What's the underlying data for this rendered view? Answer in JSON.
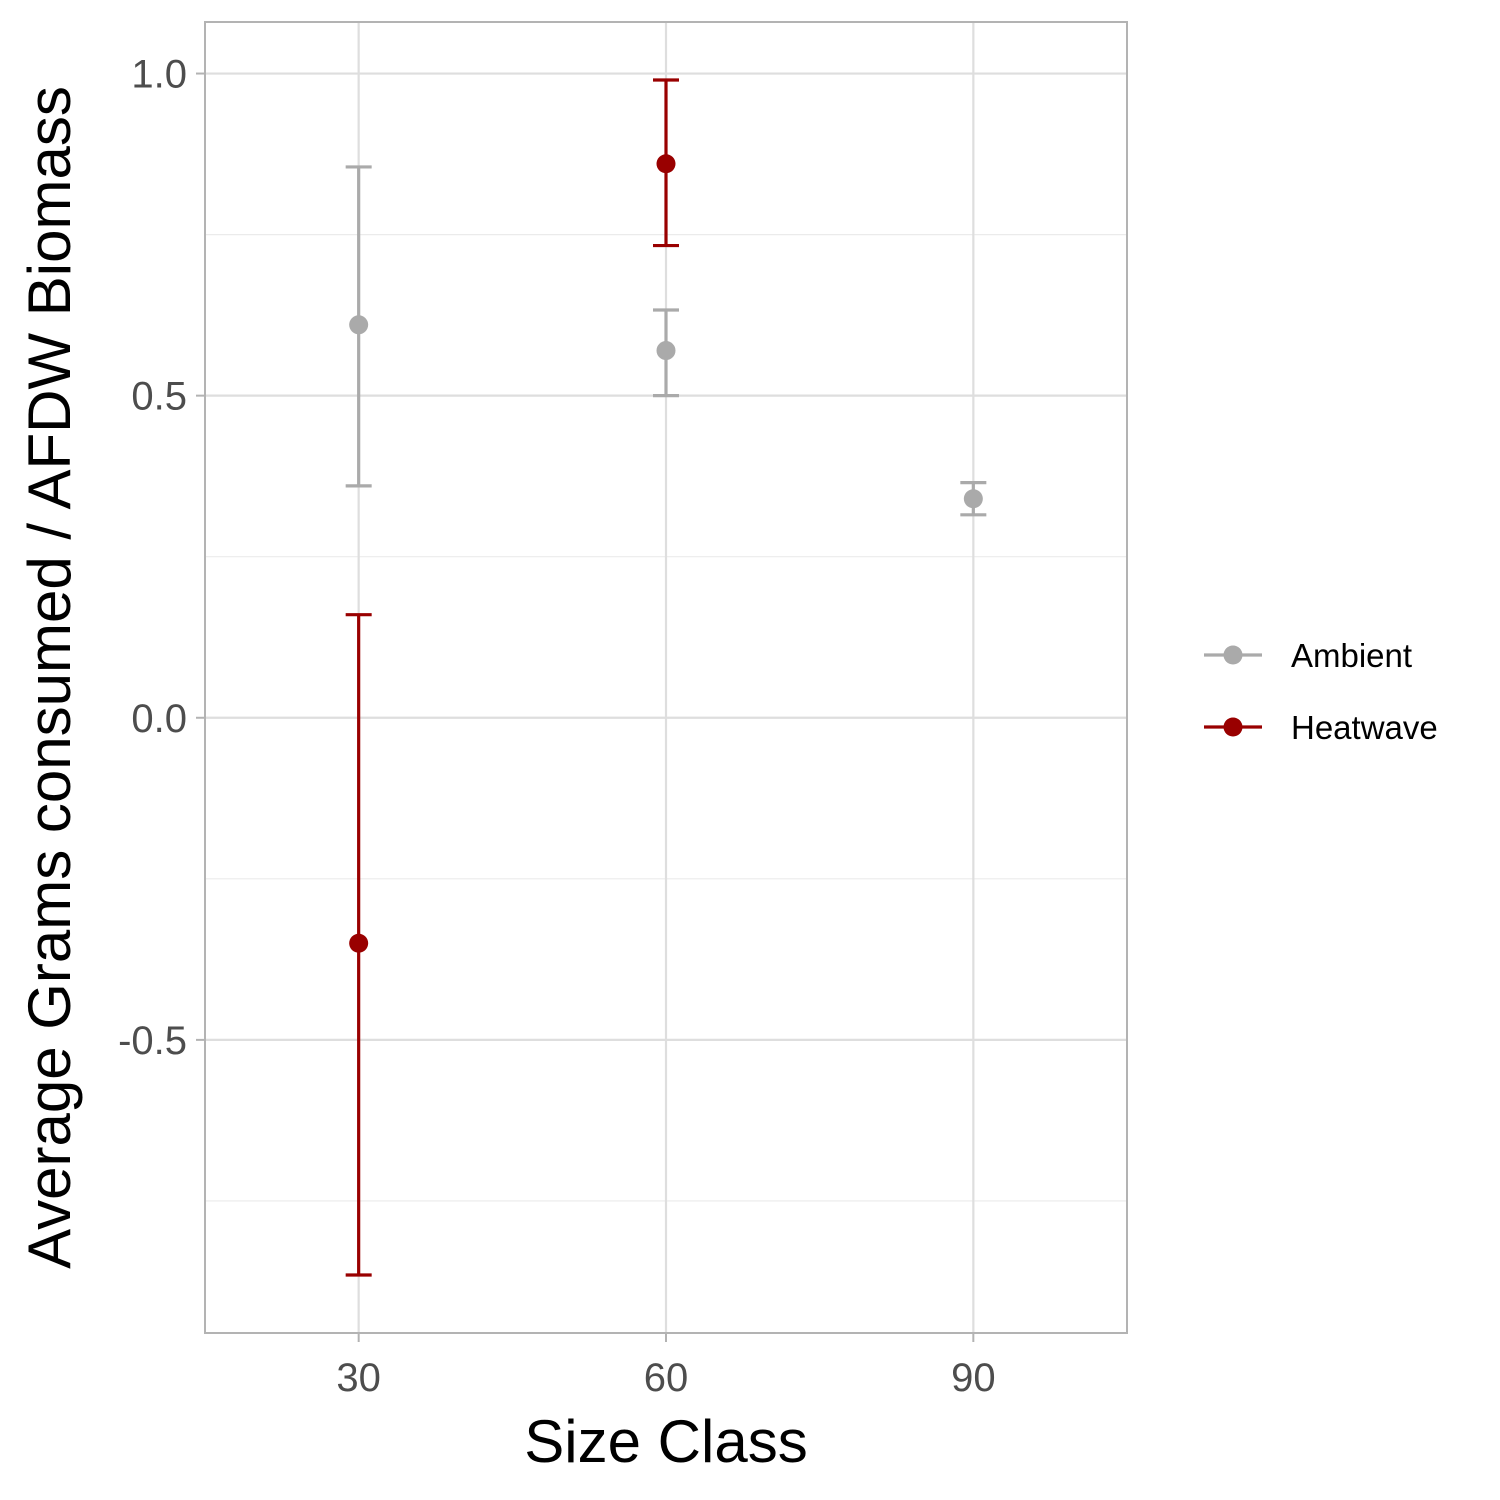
{
  "chart_data": {
    "type": "scatter",
    "xlabel": "Size Class",
    "ylabel": "Average Grams consumed / AFDW Biomass",
    "xlim": [
      15,
      105
    ],
    "ylim": [
      -0.955,
      1.08
    ],
    "x_ticks": [
      "30",
      "60",
      "90"
    ],
    "x_tick_values": [
      30,
      60,
      90
    ],
    "y_ticks": [
      "-0.5",
      "0.0",
      "0.5",
      "1.0"
    ],
    "y_tick_values": [
      -0.5,
      0.0,
      0.5,
      1.0
    ],
    "y_minor_ticks": [
      -0.75,
      -0.25,
      0.25,
      0.75
    ],
    "grid": true,
    "legend_position": "right",
    "series": [
      {
        "name": "Ambient",
        "color": "#aaaaaa",
        "points": [
          {
            "x": 30,
            "y": 0.61,
            "ymin": 0.36,
            "ymax": 0.855
          },
          {
            "x": 60,
            "y": 0.57,
            "ymin": 0.5,
            "ymax": 0.633
          },
          {
            "x": 90,
            "y": 0.34,
            "ymin": 0.315,
            "ymax": 0.365
          }
        ]
      },
      {
        "name": "Heatwave",
        "color": "#990000",
        "points": [
          {
            "x": 30,
            "y": -0.35,
            "ymin": -0.865,
            "ymax": 0.16
          },
          {
            "x": 60,
            "y": 0.86,
            "ymin": 0.733,
            "ymax": 0.99
          }
        ]
      }
    ]
  }
}
